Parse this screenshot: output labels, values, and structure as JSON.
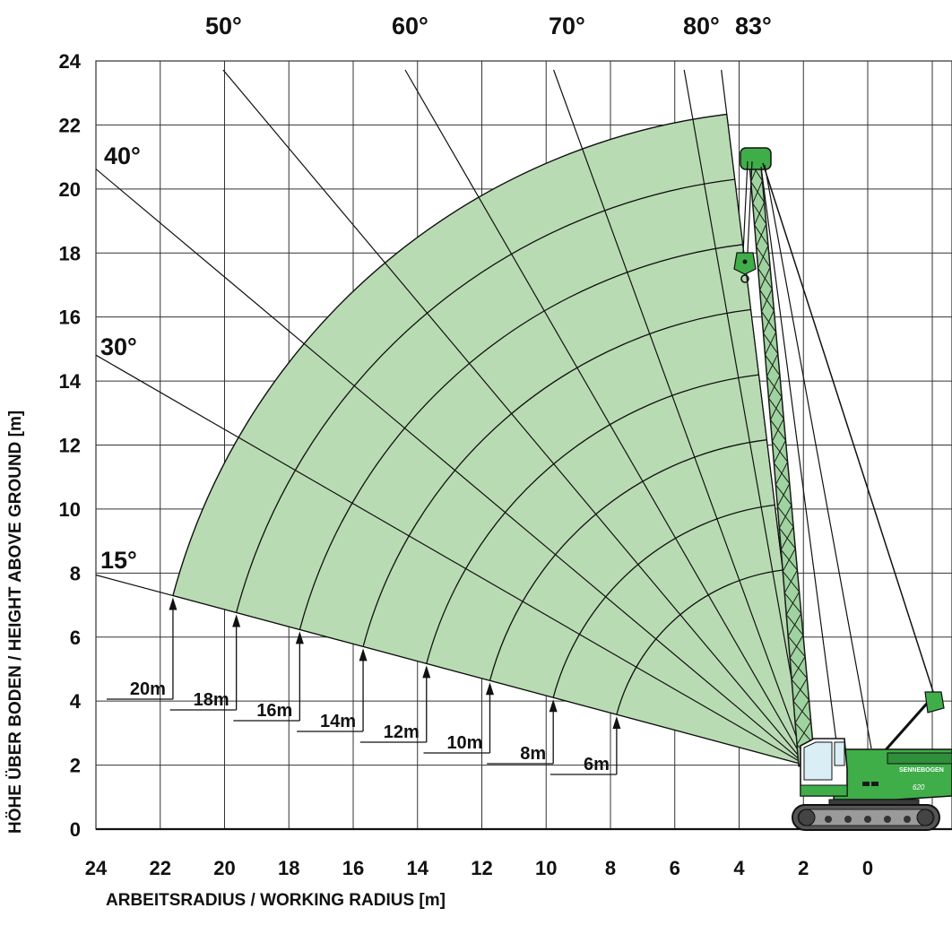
{
  "x_axis": {
    "title": "ARBEITSRADIUS / WORKING RADIUS [m]",
    "ticks": [
      24,
      22,
      20,
      18,
      16,
      14,
      12,
      10,
      8,
      6,
      4,
      2,
      0
    ]
  },
  "y_axis": {
    "title": "HÖHE ÜBER BODEN / HEIGHT ABOVE GROUND [m]",
    "ticks": [
      0,
      2,
      4,
      6,
      8,
      10,
      12,
      14,
      16,
      18,
      20,
      22,
      24
    ]
  },
  "angle_labels": [
    {
      "label": "15°",
      "deg": 15
    },
    {
      "label": "30°",
      "deg": 30
    },
    {
      "label": "40°",
      "deg": 40
    },
    {
      "label": "50°",
      "deg": 50
    },
    {
      "label": "60°",
      "deg": 60
    },
    {
      "label": "70°",
      "deg": 70
    },
    {
      "label": "80°",
      "deg": 80
    },
    {
      "label": "83°",
      "deg": 83
    }
  ],
  "boom_lengths": [
    {
      "label": "6m",
      "length_m": 6
    },
    {
      "label": "8m",
      "length_m": 8
    },
    {
      "label": "10m",
      "length_m": 10
    },
    {
      "label": "12m",
      "length_m": 12
    },
    {
      "label": "14m",
      "length_m": 14
    },
    {
      "label": "16m",
      "length_m": 16
    },
    {
      "label": "18m",
      "length_m": 18
    },
    {
      "label": "20m",
      "length_m": 20
    }
  ],
  "machine": {
    "brand": "SENNEBOGEN",
    "model": "620"
  },
  "colors": {
    "envelope_fill": "#b9dbb3",
    "machine_green": "#3fae49",
    "line": "#111111"
  }
}
